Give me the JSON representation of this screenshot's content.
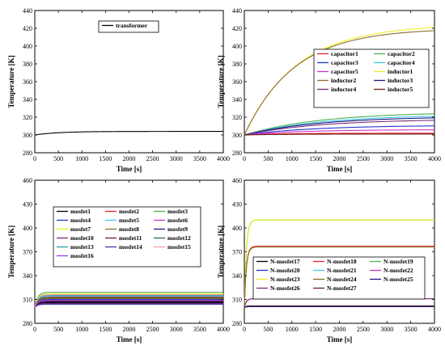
{
  "chart_data": [
    {
      "type": "line",
      "xlabel": "Time [s]",
      "ylabel": "Temperature [K]",
      "xlim": [
        0,
        4000
      ],
      "ylim": [
        280,
        440
      ],
      "xticks": [
        0,
        500,
        1000,
        1500,
        2000,
        2500,
        3000,
        3500,
        4000
      ],
      "yticks": [
        280,
        300,
        320,
        340,
        360,
        380,
        400,
        420,
        440
      ],
      "legend_position": "top-left",
      "legend_cols": 1,
      "series": [
        {
          "name": "transformer",
          "color": "#000000",
          "start": 300,
          "final": 304,
          "tau": 500
        }
      ]
    },
    {
      "type": "line",
      "xlabel": "Time [s]",
      "ylabel": "Temperature [K]",
      "xlim": [
        0,
        4000
      ],
      "ylim": [
        280,
        440
      ],
      "xticks": [
        0,
        500,
        1000,
        1500,
        2000,
        2500,
        3000,
        3500,
        4000
      ],
      "yticks": [
        280,
        300,
        320,
        340,
        360,
        380,
        400,
        420,
        440
      ],
      "legend_position": "center-right",
      "legend_cols": 2,
      "series": [
        {
          "name": "capacitor1",
          "color": "#e8202a",
          "start": 300,
          "final": 302,
          "tau": 800
        },
        {
          "name": "capacitor2",
          "color": "#4caf50",
          "start": 300,
          "final": 326,
          "tau": 1600
        },
        {
          "name": "capacitor3",
          "color": "#2233cc",
          "start": 300,
          "final": 311,
          "tau": 1500
        },
        {
          "name": "capacitor4",
          "color": "#40c8e8",
          "start": 300,
          "final": 323,
          "tau": 1600
        },
        {
          "name": "capacitor5",
          "color": "#cc33cc",
          "start": 300,
          "final": 306,
          "tau": 1200
        },
        {
          "name": "inductor1",
          "color": "#eeee22",
          "start": 300,
          "final": 424,
          "tau": 1100
        },
        {
          "name": "inductor2",
          "color": "#8b6d2a",
          "start": 300,
          "final": 420,
          "tau": 1050
        },
        {
          "name": "inductor3",
          "color": "#1a1a80",
          "start": 300,
          "final": 321,
          "tau": 1600
        },
        {
          "name": "inductor4",
          "color": "#7a2a7a",
          "start": 300,
          "final": 318,
          "tau": 1600
        },
        {
          "name": "inductor5",
          "color": "#6b2020",
          "start": 300,
          "final": 301,
          "tau": 800
        }
      ]
    },
    {
      "type": "line",
      "xlabel": "Time [s]",
      "ylabel": "Temperature [K]",
      "xlim": [
        0,
        4000
      ],
      "ylim": [
        280,
        460
      ],
      "xticks": [
        0,
        500,
        1000,
        1500,
        2000,
        2500,
        3000,
        3500,
        4000
      ],
      "yticks": [
        280,
        310,
        340,
        370,
        400,
        430,
        460
      ],
      "legend_position": "left",
      "legend_cols": 3,
      "series": [
        {
          "name": "mosfet1",
          "color": "#000000",
          "start": 300,
          "final": 306,
          "tau": 60
        },
        {
          "name": "mosfet2",
          "color": "#e8202a",
          "start": 300,
          "final": 313,
          "tau": 60
        },
        {
          "name": "mosfet3",
          "color": "#4caf50",
          "start": 300,
          "final": 319,
          "tau": 60
        },
        {
          "name": "mosfet4",
          "color": "#2233cc",
          "start": 300,
          "final": 310,
          "tau": 60
        },
        {
          "name": "mosfet5",
          "color": "#40c8e8",
          "start": 300,
          "final": 314,
          "tau": 60
        },
        {
          "name": "mosfet6",
          "color": "#cc33cc",
          "start": 300,
          "final": 309,
          "tau": 60
        },
        {
          "name": "mosfet7",
          "color": "#eeee22",
          "start": 300,
          "final": 317,
          "tau": 60
        },
        {
          "name": "mosfet8",
          "color": "#8b6d2a",
          "start": 300,
          "final": 311,
          "tau": 60
        },
        {
          "name": "mosfet9",
          "color": "#1a1a80",
          "start": 300,
          "final": 307,
          "tau": 60
        },
        {
          "name": "mosfet10",
          "color": "#7a2a7a",
          "start": 300,
          "final": 305,
          "tau": 60
        },
        {
          "name": "mosfet11",
          "color": "#6b2020",
          "start": 300,
          "final": 308,
          "tau": 60
        },
        {
          "name": "mosfet12",
          "color": "#2e6b2e",
          "start": 300,
          "final": 312,
          "tau": 60
        },
        {
          "name": "mosfet13",
          "color": "#2a9aaa",
          "start": 300,
          "final": 315,
          "tau": 60
        },
        {
          "name": "mosfet14",
          "color": "#3a3aaa",
          "start": 300,
          "final": 304,
          "tau": 60
        },
        {
          "name": "mosfet15",
          "color": "#ff9a9a",
          "start": 300,
          "final": 316,
          "tau": 60
        },
        {
          "name": "mosfet16",
          "color": "#9a3aee",
          "start": 300,
          "final": 309,
          "tau": 60
        }
      ]
    },
    {
      "type": "line",
      "xlabel": "Time [s]",
      "ylabel": "Temperature [K]",
      "xlim": [
        0,
        4000
      ],
      "ylim": [
        280,
        460
      ],
      "xticks": [
        0,
        500,
        1000,
        1500,
        2000,
        2500,
        3000,
        3500,
        4000
      ],
      "yticks": [
        280,
        310,
        340,
        370,
        400,
        430,
        460
      ],
      "legend_position": "center",
      "legend_cols": 3,
      "series": [
        {
          "name": "N-mosfet17",
          "color": "#000000",
          "start": 300,
          "final": 301,
          "tau": 40
        },
        {
          "name": "N-mosfet18",
          "color": "#e8202a",
          "start": 300,
          "final": 377,
          "tau": 40
        },
        {
          "name": "N-mosfet19",
          "color": "#4caf50",
          "start": 300,
          "final": 410,
          "tau": 40
        },
        {
          "name": "N-mosfet20",
          "color": "#2233cc",
          "start": 300,
          "final": 301,
          "tau": 40
        },
        {
          "name": "N-mosfet21",
          "color": "#40c8e8",
          "start": 300,
          "final": 302,
          "tau": 40
        },
        {
          "name": "N-mosfet22",
          "color": "#cc33cc",
          "start": 300,
          "final": 311,
          "tau": 40
        },
        {
          "name": "N-mosfet23",
          "color": "#eeee22",
          "start": 300,
          "final": 410,
          "tau": 40
        },
        {
          "name": "N-mosfet24",
          "color": "#8b6d2a",
          "start": 300,
          "final": 376,
          "tau": 40
        },
        {
          "name": "N-mosfet25",
          "color": "#1a1a80",
          "start": 300,
          "final": 301,
          "tau": 40
        },
        {
          "name": "N-mosfet26",
          "color": "#7a2a7a",
          "start": 300,
          "final": 311,
          "tau": 40
        },
        {
          "name": "N-mosfet27",
          "color": "#6b2020",
          "start": 300,
          "final": 302,
          "tau": 40
        }
      ]
    }
  ]
}
